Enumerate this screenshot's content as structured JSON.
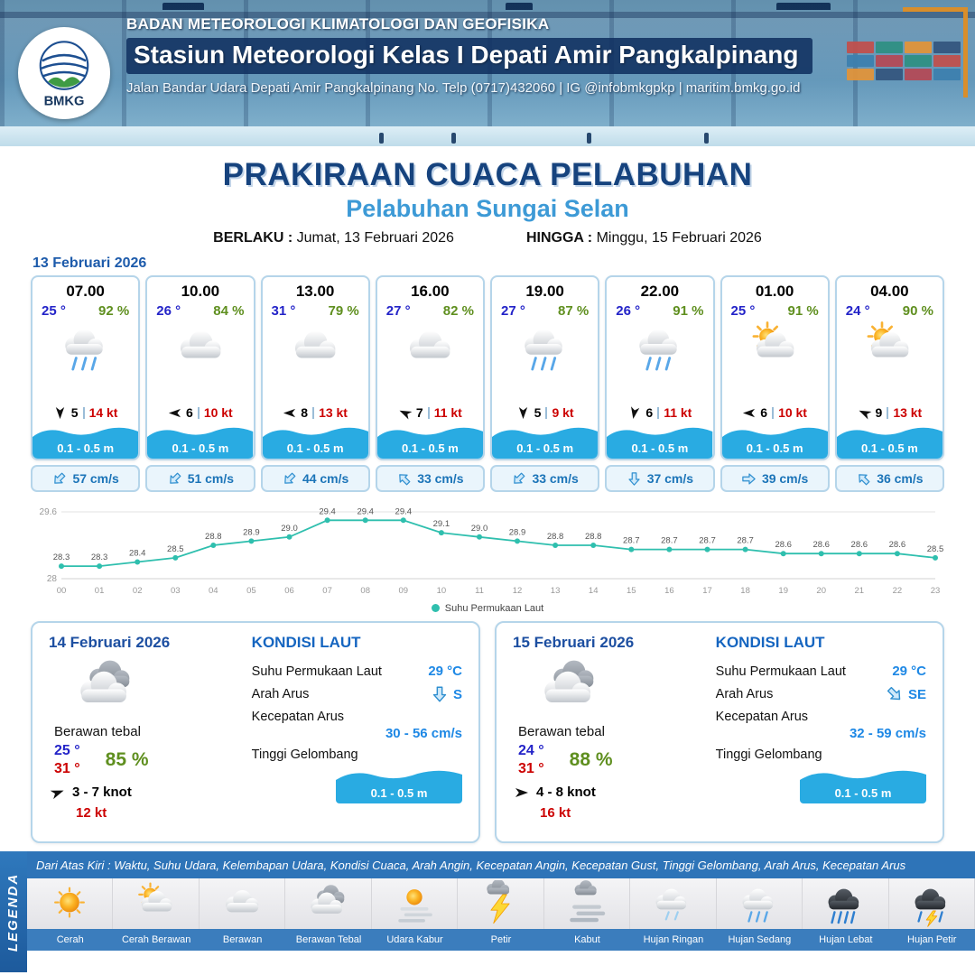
{
  "header": {
    "logo_text": "BMKG",
    "org_line": "BADAN METEOROLOGI KLIMATOLOGI DAN GEOFISIKA",
    "station_line": "Stasiun Meteorologi Kelas I Depati Amir Pangkalpinang",
    "address_line": "Jalan Bandar Udara Depati Amir Pangkalpinang No. Telp (0717)432060 | IG @infobmkgpkp | maritim.bmkg.go.id"
  },
  "title": {
    "main": "PRAKIRAAN CUACA PELABUHAN",
    "subtitle": "Pelabuhan Sungai Selan",
    "valid_from_label": "BERLAKU :",
    "valid_from": "Jumat, 13 Februari 2026",
    "valid_to_label": "HINGGA :",
    "valid_to": "Minggu, 15 Februari 2026"
  },
  "hourly": {
    "date": "13 Februari 2026",
    "cards": [
      {
        "time": "07.00",
        "temp": "25 °",
        "humidity": "92 %",
        "icon": "hujan-sedang",
        "wind_dir_deg": 90,
        "wind_speed": "5",
        "gust": "14 kt",
        "wave": "0.1 - 0.5 m",
        "current_dir_deg": 135,
        "current": "57 cm/s"
      },
      {
        "time": "10.00",
        "temp": "26 °",
        "humidity": "84 %",
        "icon": "berawan",
        "wind_dir_deg": 180,
        "wind_speed": "6",
        "gust": "10 kt",
        "wave": "0.1 - 0.5 m",
        "current_dir_deg": 135,
        "current": "51 cm/s"
      },
      {
        "time": "13.00",
        "temp": "31 °",
        "humidity": "79 %",
        "icon": "berawan",
        "wind_dir_deg": 180,
        "wind_speed": "8",
        "gust": "13 kt",
        "wave": "0.1 - 0.5 m",
        "current_dir_deg": 135,
        "current": "44 cm/s"
      },
      {
        "time": "16.00",
        "temp": "27 °",
        "humidity": "82 %",
        "icon": "berawan",
        "wind_dir_deg": 205,
        "wind_speed": "7",
        "gust": "11 kt",
        "wave": "0.1 - 0.5 m",
        "current_dir_deg": 225,
        "current": "33 cm/s"
      },
      {
        "time": "19.00",
        "temp": "27 °",
        "humidity": "87 %",
        "icon": "hujan-sedang",
        "wind_dir_deg": 90,
        "wind_speed": "5",
        "gust": "9 kt",
        "wave": "0.1 - 0.5 m",
        "current_dir_deg": 135,
        "current": "33 cm/s"
      },
      {
        "time": "22.00",
        "temp": "26 °",
        "humidity": "91 %",
        "icon": "hujan-sedang",
        "wind_dir_deg": 100,
        "wind_speed": "6",
        "gust": "11 kt",
        "wave": "0.1 - 0.5 m",
        "current_dir_deg": 90,
        "current": "37 cm/s"
      },
      {
        "time": "01.00",
        "temp": "25 °",
        "humidity": "91 %",
        "icon": "cerah-berawan",
        "wind_dir_deg": 180,
        "wind_speed": "6",
        "gust": "10 kt",
        "wave": "0.1 - 0.5 m",
        "current_dir_deg": 0,
        "current": "39 cm/s"
      },
      {
        "time": "04.00",
        "temp": "24 °",
        "humidity": "90 %",
        "icon": "cerah-berawan",
        "wind_dir_deg": 205,
        "wind_speed": "9",
        "gust": "13 kt",
        "wave": "0.1 - 0.5 m",
        "current_dir_deg": 225,
        "current": "36 cm/s"
      }
    ]
  },
  "chart_data": {
    "type": "line",
    "series_name": "Suhu Permukaan Laut",
    "x": [
      "00",
      "01",
      "02",
      "03",
      "04",
      "05",
      "06",
      "07",
      "08",
      "09",
      "10",
      "11",
      "12",
      "13",
      "14",
      "15",
      "16",
      "17",
      "18",
      "19",
      "20",
      "21",
      "22",
      "23"
    ],
    "values": [
      28.3,
      28.3,
      28.4,
      28.5,
      28.8,
      28.9,
      29.0,
      29.4,
      29.4,
      29.4,
      29.1,
      29.0,
      28.9,
      28.8,
      28.8,
      28.7,
      28.7,
      28.7,
      28.7,
      28.6,
      28.6,
      28.6,
      28.6,
      28.5
    ],
    "ylim": [
      28,
      29.6
    ],
    "xlabel": "",
    "ylabel": "",
    "grid": "minimal",
    "legend_position": "bottom",
    "line_color": "#2fbfae"
  },
  "daily": [
    {
      "date": "14 Februari 2026",
      "icon": "berawan-tebal",
      "condition": "Berawan tebal",
      "temp_min": "25 °",
      "temp_max": "31 °",
      "humidity": "85 %",
      "wind": "3 - 7 knot",
      "wind_dir_deg": -20,
      "gust": "12 kt",
      "sea": {
        "title": "KONDISI LAUT",
        "sst_label": "Suhu Permukaan Laut",
        "sst": "29 °C",
        "current_dir_label": "Arah Arus",
        "current_dir": "S",
        "current_dir_deg": 90,
        "current_speed_label": "Kecepatan Arus",
        "current_speed": "30 - 56 cm/s",
        "wave_label": "Tinggi Gelombang",
        "wave": "0.1 - 0.5 m"
      }
    },
    {
      "date": "15 Februari 2026",
      "icon": "berawan-tebal",
      "condition": "Berawan tebal",
      "temp_min": "24 °",
      "temp_max": "31 °",
      "humidity": "88 %",
      "wind": "4 - 8 knot",
      "wind_dir_deg": 0,
      "gust": "16 kt",
      "sea": {
        "title": "KONDISI LAUT",
        "sst_label": "Suhu Permukaan Laut",
        "sst": "29 °C",
        "current_dir_label": "Arah Arus",
        "current_dir": "SE",
        "current_dir_deg": 45,
        "current_speed_label": "Kecepatan Arus",
        "current_speed": "32 - 59 cm/s",
        "wave_label": "Tinggi Gelombang",
        "wave": "0.1 - 0.5 m"
      }
    }
  ],
  "legend": {
    "vertical_label": "LEGENDA",
    "note": "Dari Atas Kiri : Waktu, Suhu Udara, Kelembapan Udara, Kondisi Cuaca, Arah Angin, Kecepatan Angin, Kecepatan Gust, Tinggi Gelombang, Arah Arus, Kecepatan Arus",
    "items": [
      {
        "label": "Cerah",
        "icon": "cerah"
      },
      {
        "label": "Cerah Berawan",
        "icon": "cerah-berawan"
      },
      {
        "label": "Berawan",
        "icon": "berawan"
      },
      {
        "label": "Berawan Tebal",
        "icon": "berawan-tebal"
      },
      {
        "label": "Udara Kabur",
        "icon": "udara-kabur"
      },
      {
        "label": "Petir",
        "icon": "petir"
      },
      {
        "label": "Kabut",
        "icon": "kabut"
      },
      {
        "label": "Hujan Ringan",
        "icon": "hujan-ringan"
      },
      {
        "label": "Hujan Sedang",
        "icon": "hujan-sedang"
      },
      {
        "label": "Hujan Lebat",
        "icon": "hujan-lebat"
      },
      {
        "label": "Hujan Petir",
        "icon": "hujan-petir"
      }
    ]
  },
  "colors": {
    "accent_dark_blue": "#16437e",
    "accent_blue": "#3d9ad6",
    "temp_blue": "#2323c8",
    "temp_max_red": "#cc0000",
    "humidity_green": "#5f8f1f",
    "gust_red": "#cc0000",
    "wave_blue": "#29abe2",
    "current_text_blue": "#1b74b8",
    "chart_teal": "#2fbfae"
  }
}
